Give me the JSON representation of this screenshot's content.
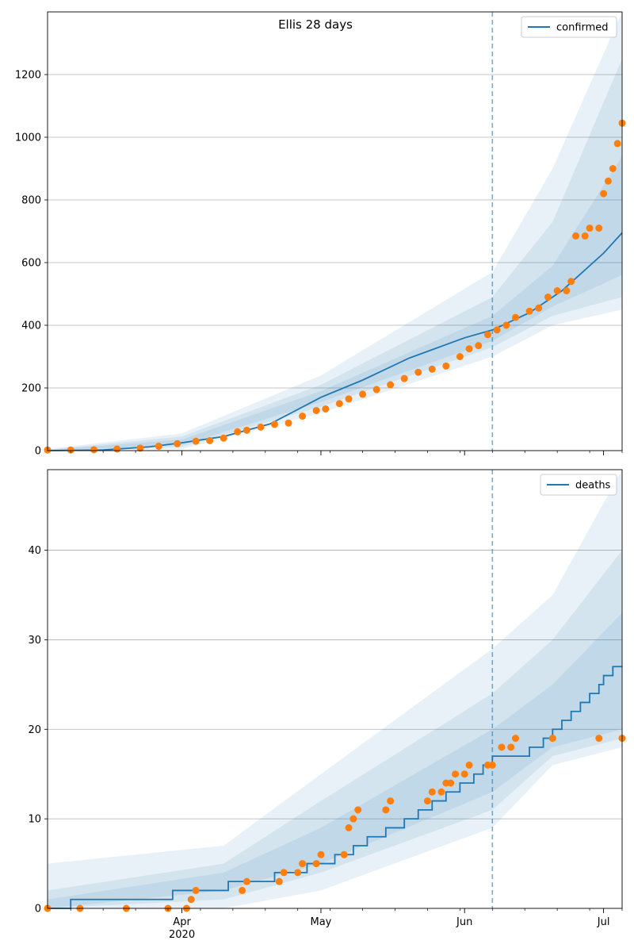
{
  "chart_data": [
    {
      "type": "line",
      "title": "Ellis 28 days",
      "x_tick_labels": [
        "Apr",
        "May",
        "Jun",
        "Jul"
      ],
      "x_year_label": "2020",
      "xlim": [
        "2020-03-03",
        "2020-07-05"
      ],
      "ylim": [
        0,
        1400
      ],
      "y_ticks": [
        0,
        200,
        400,
        600,
        800,
        1000,
        1200
      ],
      "grid": "horizontal",
      "legend": {
        "position": "top-right",
        "entries": [
          "confirmed"
        ]
      },
      "forecast_start": "2020-06-07",
      "series": [
        {
          "name": "confirmed",
          "style": "line",
          "color": "#1f77b4",
          "points": [
            [
              "2020-03-03",
              0
            ],
            [
              "2020-03-15",
              2
            ],
            [
              "2020-03-25",
              12
            ],
            [
              "2020-04-01",
              25
            ],
            [
              "2020-04-10",
              45
            ],
            [
              "2020-04-20",
              85
            ],
            [
              "2020-05-01",
              170
            ],
            [
              "2020-05-10",
              225
            ],
            [
              "2020-05-20",
              295
            ],
            [
              "2020-06-01",
              360
            ],
            [
              "2020-06-07",
              385
            ],
            [
              "2020-06-15",
              440
            ],
            [
              "2020-06-22",
              510
            ],
            [
              "2020-07-01",
              630
            ],
            [
              "2020-07-05",
              695
            ]
          ]
        },
        {
          "name": "observed",
          "style": "points",
          "color": "#ff7f0e",
          "points": [
            [
              "2020-03-03",
              2
            ],
            [
              "2020-03-08",
              2
            ],
            [
              "2020-03-13",
              3
            ],
            [
              "2020-03-18",
              5
            ],
            [
              "2020-03-23",
              8
            ],
            [
              "2020-03-27",
              14
            ],
            [
              "2020-03-31",
              22
            ],
            [
              "2020-04-04",
              30
            ],
            [
              "2020-04-07",
              32
            ],
            [
              "2020-04-10",
              40
            ],
            [
              "2020-04-13",
              60
            ],
            [
              "2020-04-15",
              65
            ],
            [
              "2020-04-18",
              75
            ],
            [
              "2020-04-21",
              84
            ],
            [
              "2020-04-24",
              88
            ],
            [
              "2020-04-27",
              110
            ],
            [
              "2020-04-30",
              128
            ],
            [
              "2020-05-02",
              133
            ],
            [
              "2020-05-05",
              150
            ],
            [
              "2020-05-07",
              165
            ],
            [
              "2020-05-10",
              180
            ],
            [
              "2020-05-13",
              195
            ],
            [
              "2020-05-16",
              210
            ],
            [
              "2020-05-19",
              230
            ],
            [
              "2020-05-22",
              250
            ],
            [
              "2020-05-25",
              260
            ],
            [
              "2020-05-28",
              270
            ],
            [
              "2020-05-31",
              300
            ],
            [
              "2020-06-02",
              325
            ],
            [
              "2020-06-04",
              335
            ],
            [
              "2020-06-06",
              370
            ],
            [
              "2020-06-08",
              385
            ],
            [
              "2020-06-10",
              400
            ],
            [
              "2020-06-12",
              425
            ],
            [
              "2020-06-15",
              445
            ],
            [
              "2020-06-17",
              455
            ],
            [
              "2020-06-19",
              490
            ],
            [
              "2020-06-21",
              510
            ],
            [
              "2020-06-23",
              510
            ],
            [
              "2020-06-24",
              540
            ],
            [
              "2020-06-25",
              685
            ],
            [
              "2020-06-27",
              685
            ],
            [
              "2020-06-28",
              710
            ],
            [
              "2020-06-30",
              710
            ],
            [
              "2020-07-01",
              820
            ],
            [
              "2020-07-02",
              860
            ],
            [
              "2020-07-03",
              900
            ],
            [
              "2020-07-04",
              980
            ],
            [
              "2020-07-05",
              1045
            ]
          ]
        }
      ],
      "bands": [
        {
          "color": "#1f77b4",
          "opacity": 0.1,
          "lower": [
            [
              "2020-03-03",
              0
            ],
            [
              "2020-04-01",
              5
            ],
            [
              "2020-05-01",
              120
            ],
            [
              "2020-06-07",
              300
            ],
            [
              "2020-06-20",
              400
            ],
            [
              "2020-07-05",
              450
            ]
          ],
          "upper": [
            [
              "2020-03-03",
              5
            ],
            [
              "2020-04-01",
              55
            ],
            [
              "2020-05-01",
              240
            ],
            [
              "2020-06-07",
              570
            ],
            [
              "2020-06-20",
              900
            ],
            [
              "2020-07-05",
              1400
            ]
          ]
        },
        {
          "color": "#1f77b4",
          "opacity": 0.1,
          "lower": [
            [
              "2020-03-03",
              0
            ],
            [
              "2020-04-01",
              12
            ],
            [
              "2020-05-01",
              140
            ],
            [
              "2020-06-07",
              330
            ],
            [
              "2020-06-20",
              430
            ],
            [
              "2020-07-05",
              490
            ]
          ],
          "upper": [
            [
              "2020-03-03",
              3
            ],
            [
              "2020-04-01",
              45
            ],
            [
              "2020-05-01",
              210
            ],
            [
              "2020-06-07",
              490
            ],
            [
              "2020-06-20",
              730
            ],
            [
              "2020-07-05",
              1250
            ]
          ]
        },
        {
          "color": "#1f77b4",
          "opacity": 0.1,
          "lower": [
            [
              "2020-03-03",
              0
            ],
            [
              "2020-04-01",
              18
            ],
            [
              "2020-05-01",
              155
            ],
            [
              "2020-06-07",
              350
            ],
            [
              "2020-06-20",
              460
            ],
            [
              "2020-07-05",
              560
            ]
          ],
          "upper": [
            [
              "2020-03-03",
              2
            ],
            [
              "2020-04-01",
              35
            ],
            [
              "2020-05-01",
              190
            ],
            [
              "2020-06-07",
              430
            ],
            [
              "2020-06-20",
              590
            ],
            [
              "2020-07-05",
              940
            ]
          ]
        }
      ]
    },
    {
      "type": "line",
      "title": "",
      "x_tick_labels": [
        "Apr",
        "May",
        "Jun",
        "Jul"
      ],
      "x_year_label": "2020",
      "xlim": [
        "2020-03-03",
        "2020-07-05"
      ],
      "ylim": [
        0,
        49
      ],
      "y_ticks": [
        0,
        10,
        20,
        30,
        40
      ],
      "grid": "horizontal",
      "legend": {
        "position": "top-right",
        "entries": [
          "deaths"
        ]
      },
      "forecast_start": "2020-06-07",
      "series": [
        {
          "name": "deaths",
          "style": "step",
          "color": "#1f77b4",
          "points": [
            [
              "2020-03-03",
              0
            ],
            [
              "2020-03-08",
              1
            ],
            [
              "2020-03-30",
              2
            ],
            [
              "2020-04-11",
              3
            ],
            [
              "2020-04-21",
              4
            ],
            [
              "2020-04-28",
              5
            ],
            [
              "2020-05-04",
              6
            ],
            [
              "2020-05-08",
              7
            ],
            [
              "2020-05-11",
              8
            ],
            [
              "2020-05-15",
              9
            ],
            [
              "2020-05-19",
              10
            ],
            [
              "2020-05-22",
              11
            ],
            [
              "2020-05-25",
              12
            ],
            [
              "2020-05-28",
              13
            ],
            [
              "2020-05-31",
              14
            ],
            [
              "2020-06-03",
              15
            ],
            [
              "2020-06-05",
              16
            ],
            [
              "2020-06-07",
              17
            ],
            [
              "2020-06-12",
              17
            ],
            [
              "2020-06-15",
              18
            ],
            [
              "2020-06-18",
              19
            ],
            [
              "2020-06-20",
              20
            ],
            [
              "2020-06-22",
              21
            ],
            [
              "2020-06-24",
              22
            ],
            [
              "2020-06-26",
              23
            ],
            [
              "2020-06-28",
              24
            ],
            [
              "2020-06-30",
              25
            ],
            [
              "2020-07-01",
              26
            ],
            [
              "2020-07-03",
              27
            ],
            [
              "2020-07-05",
              27
            ]
          ]
        },
        {
          "name": "observed",
          "style": "points",
          "color": "#ff7f0e",
          "points": [
            [
              "2020-03-03",
              0
            ],
            [
              "2020-03-10",
              0
            ],
            [
              "2020-03-20",
              0
            ],
            [
              "2020-03-29",
              0
            ],
            [
              "2020-04-02",
              0
            ],
            [
              "2020-04-03",
              1
            ],
            [
              "2020-04-04",
              2
            ],
            [
              "2020-04-14",
              2
            ],
            [
              "2020-04-15",
              3
            ],
            [
              "2020-04-22",
              3
            ],
            [
              "2020-04-23",
              4
            ],
            [
              "2020-04-26",
              4
            ],
            [
              "2020-04-27",
              5
            ],
            [
              "2020-04-30",
              5
            ],
            [
              "2020-05-01",
              6
            ],
            [
              "2020-05-06",
              6
            ],
            [
              "2020-05-07",
              9
            ],
            [
              "2020-05-08",
              10
            ],
            [
              "2020-05-09",
              11
            ],
            [
              "2020-05-15",
              11
            ],
            [
              "2020-05-16",
              12
            ],
            [
              "2020-05-24",
              12
            ],
            [
              "2020-05-25",
              13
            ],
            [
              "2020-05-27",
              13
            ],
            [
              "2020-05-28",
              14
            ],
            [
              "2020-05-29",
              14
            ],
            [
              "2020-05-30",
              15
            ],
            [
              "2020-06-01",
              15
            ],
            [
              "2020-06-02",
              16
            ],
            [
              "2020-06-06",
              16
            ],
            [
              "2020-06-07",
              16
            ],
            [
              "2020-06-09",
              18
            ],
            [
              "2020-06-11",
              18
            ],
            [
              "2020-06-12",
              19
            ],
            [
              "2020-06-20",
              19
            ],
            [
              "2020-06-30",
              19
            ],
            [
              "2020-07-05",
              19
            ]
          ]
        }
      ],
      "bands": [
        {
          "color": "#1f77b4",
          "opacity": 0.1,
          "lower": [
            [
              "2020-03-03",
              0
            ],
            [
              "2020-04-10",
              0
            ],
            [
              "2020-05-01",
              2
            ],
            [
              "2020-06-07",
              9
            ],
            [
              "2020-06-20",
              16
            ],
            [
              "2020-07-05",
              18
            ]
          ],
          "upper": [
            [
              "2020-03-03",
              5
            ],
            [
              "2020-04-10",
              7
            ],
            [
              "2020-05-01",
              15
            ],
            [
              "2020-06-07",
              29
            ],
            [
              "2020-06-20",
              35
            ],
            [
              "2020-07-05",
              49
            ]
          ]
        },
        {
          "color": "#1f77b4",
          "opacity": 0.1,
          "lower": [
            [
              "2020-03-03",
              0
            ],
            [
              "2020-04-10",
              1
            ],
            [
              "2020-05-01",
              4
            ],
            [
              "2020-06-07",
              11
            ],
            [
              "2020-06-20",
              17
            ],
            [
              "2020-07-05",
              19
            ]
          ],
          "upper": [
            [
              "2020-03-03",
              2
            ],
            [
              "2020-04-10",
              5
            ],
            [
              "2020-05-01",
              12
            ],
            [
              "2020-06-07",
              24
            ],
            [
              "2020-06-20",
              30
            ],
            [
              "2020-07-05",
              40
            ]
          ]
        },
        {
          "color": "#1f77b4",
          "opacity": 0.1,
          "lower": [
            [
              "2020-03-03",
              0
            ],
            [
              "2020-04-10",
              2
            ],
            [
              "2020-05-01",
              5
            ],
            [
              "2020-06-07",
              13
            ],
            [
              "2020-06-20",
              18
            ],
            [
              "2020-07-05",
              20
            ]
          ],
          "upper": [
            [
              "2020-03-03",
              1
            ],
            [
              "2020-04-10",
              4
            ],
            [
              "2020-05-01",
              9
            ],
            [
              "2020-06-07",
              20
            ],
            [
              "2020-06-20",
              25
            ],
            [
              "2020-07-05",
              33
            ]
          ]
        }
      ]
    }
  ]
}
